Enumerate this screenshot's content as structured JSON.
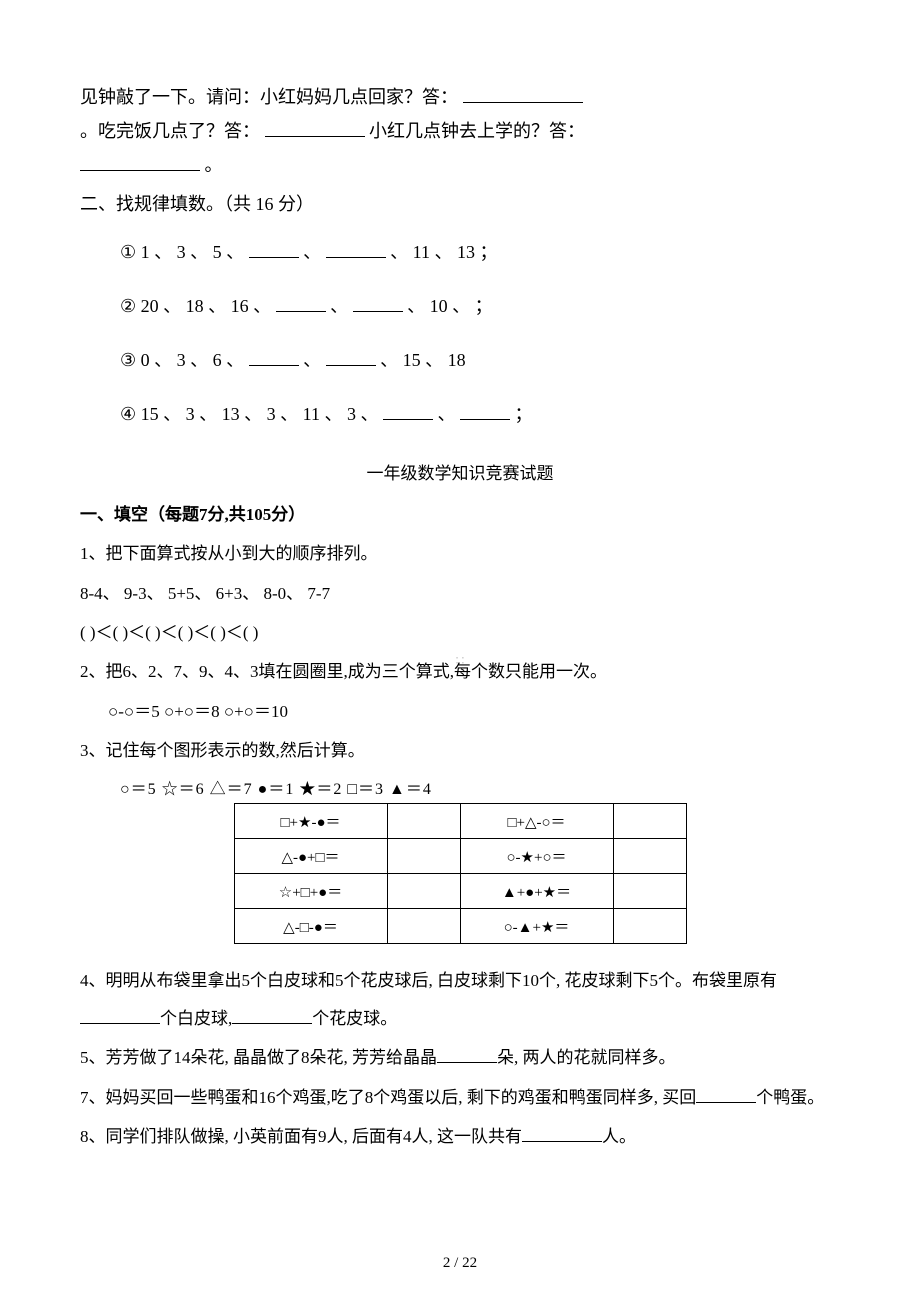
{
  "intro": {
    "p1_a": "见钟敲了一下。请问：小红妈妈几点回家？答：",
    "p1_b": "。吃完饭几点了？答：",
    "p1_c": " 小红几点钟去上学的？答：",
    "p1_d": " 。"
  },
  "section2_title": "二、找规律填数。（共 16 分）",
  "seqs": {
    "s1_pre": "① 1 、 3 、 5 、",
    "s1_mid": "、",
    "s1_post": "、  11 、 13 ；",
    "s2_pre": "② 20 、 18 、 16 、",
    "s2_mid": "、",
    "s2_post": "、  10 、 ；",
    "s3_pre": "③ 0 、 3 、 6 、",
    "s3_mid": "、",
    "s3_post": "、  15 、 18",
    "s4_pre": "④ 15 、 3 、 13 、 3 、 11 、 3 、",
    "s4_mid": "、",
    "s4_post": "；"
  },
  "title2": "一年级数学知识竞赛试题",
  "sectionA_title": "一、填空（每题7分,共105分）",
  "q1": {
    "line1": "1、把下面算式按从小到大的顺序排列。",
    "line2": "8-4、 9-3、 5+5、 6+3、 8-0、 7-7",
    "line3": "(   )＜(   )＜(   )＜(   )＜(   )＜(   )"
  },
  "q2": {
    "line1": "2、把6、2、7、9、4、3填在圆圈里,成为三个算式,每个数只能用一次。",
    "line2": "○-○＝5      ○+○＝8      ○+○＝10"
  },
  "q3": {
    "line1": "3、记住每个图形表示的数,然后计算。",
    "legend": "○＝5  ☆＝6  △＝7  ●＝1  ★＝2  □＝3   ▲＝4",
    "cells": {
      "r1c1": "□+★-●＝",
      "r1c3": "□+△-○＝",
      "r2c1": "△-●+□＝",
      "r2c3": "○-★+○＝",
      "r3c1": "☆+□+●＝",
      "r3c3": "▲+●+★＝",
      "r4c1": "△-□-●＝",
      "r4c3": "○-▲+★＝"
    }
  },
  "q4": {
    "a": "4、明明从布袋里拿出5个白皮球和5个花皮球后, 白皮球剩下10个, 花皮球剩下5个。布袋里原有",
    "b": "个白皮球,",
    "c": "个花皮球。"
  },
  "q5": {
    "a": "5、芳芳做了14朵花, 晶晶做了8朵花, 芳芳给晶晶",
    "b": "朵, 两人的花就同样多。"
  },
  "q7": {
    "a": "7、妈妈买回一些鸭蛋和16个鸡蛋,吃了8个鸡蛋以后, 剩下的鸡蛋和鸭蛋同样多, 买回",
    "b": "个鸭蛋。"
  },
  "q8": {
    "a": "8、同学们排队做操, 小英前面有9人, 后面有4人, 这一队共有",
    "b": "人。"
  },
  "watermark": "∷",
  "pagenum": "2 / 22"
}
